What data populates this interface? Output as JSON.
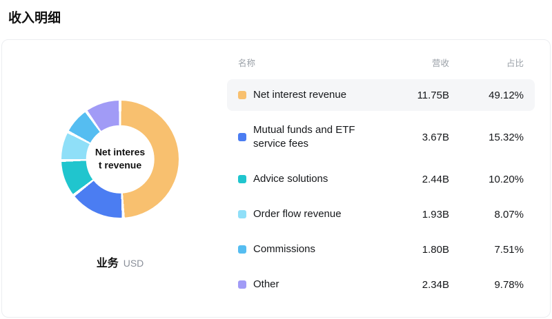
{
  "page_title": "收入明细",
  "chart": {
    "center_label": "Net interest revenue",
    "footer_label": "业务",
    "footer_unit": "USD"
  },
  "table": {
    "headers": {
      "name": "名称",
      "revenue": "营收",
      "share": "占比"
    }
  },
  "chart_data": {
    "type": "pie",
    "variant": "donut",
    "title": "收入明细",
    "unit": "USD",
    "legend_position": "right",
    "inner_radius_pct": 58,
    "start_angle_deg": 0,
    "items": [
      {
        "name": "Net interest revenue",
        "revenue": "11.75B",
        "percent": 49.12,
        "percent_label": "49.12%",
        "color": "#F8C06F",
        "highlighted": true
      },
      {
        "name": "Mutual funds and ETF service fees",
        "revenue": "3.67B",
        "percent": 15.32,
        "percent_label": "15.32%",
        "color": "#4B7DF2",
        "highlighted": false
      },
      {
        "name": "Advice solutions",
        "revenue": "2.44B",
        "percent": 10.2,
        "percent_label": "10.20%",
        "color": "#20C5CE",
        "highlighted": false
      },
      {
        "name": "Order flow revenue",
        "revenue": "1.93B",
        "percent": 8.07,
        "percent_label": "8.07%",
        "color": "#8FDFF8",
        "highlighted": false
      },
      {
        "name": "Commissions",
        "revenue": "1.80B",
        "percent": 7.51,
        "percent_label": "7.51%",
        "color": "#55BDF1",
        "highlighted": false
      },
      {
        "name": "Other",
        "revenue": "2.34B",
        "percent": 9.78,
        "percent_label": "9.78%",
        "color": "#A19BF6",
        "highlighted": false
      }
    ]
  }
}
